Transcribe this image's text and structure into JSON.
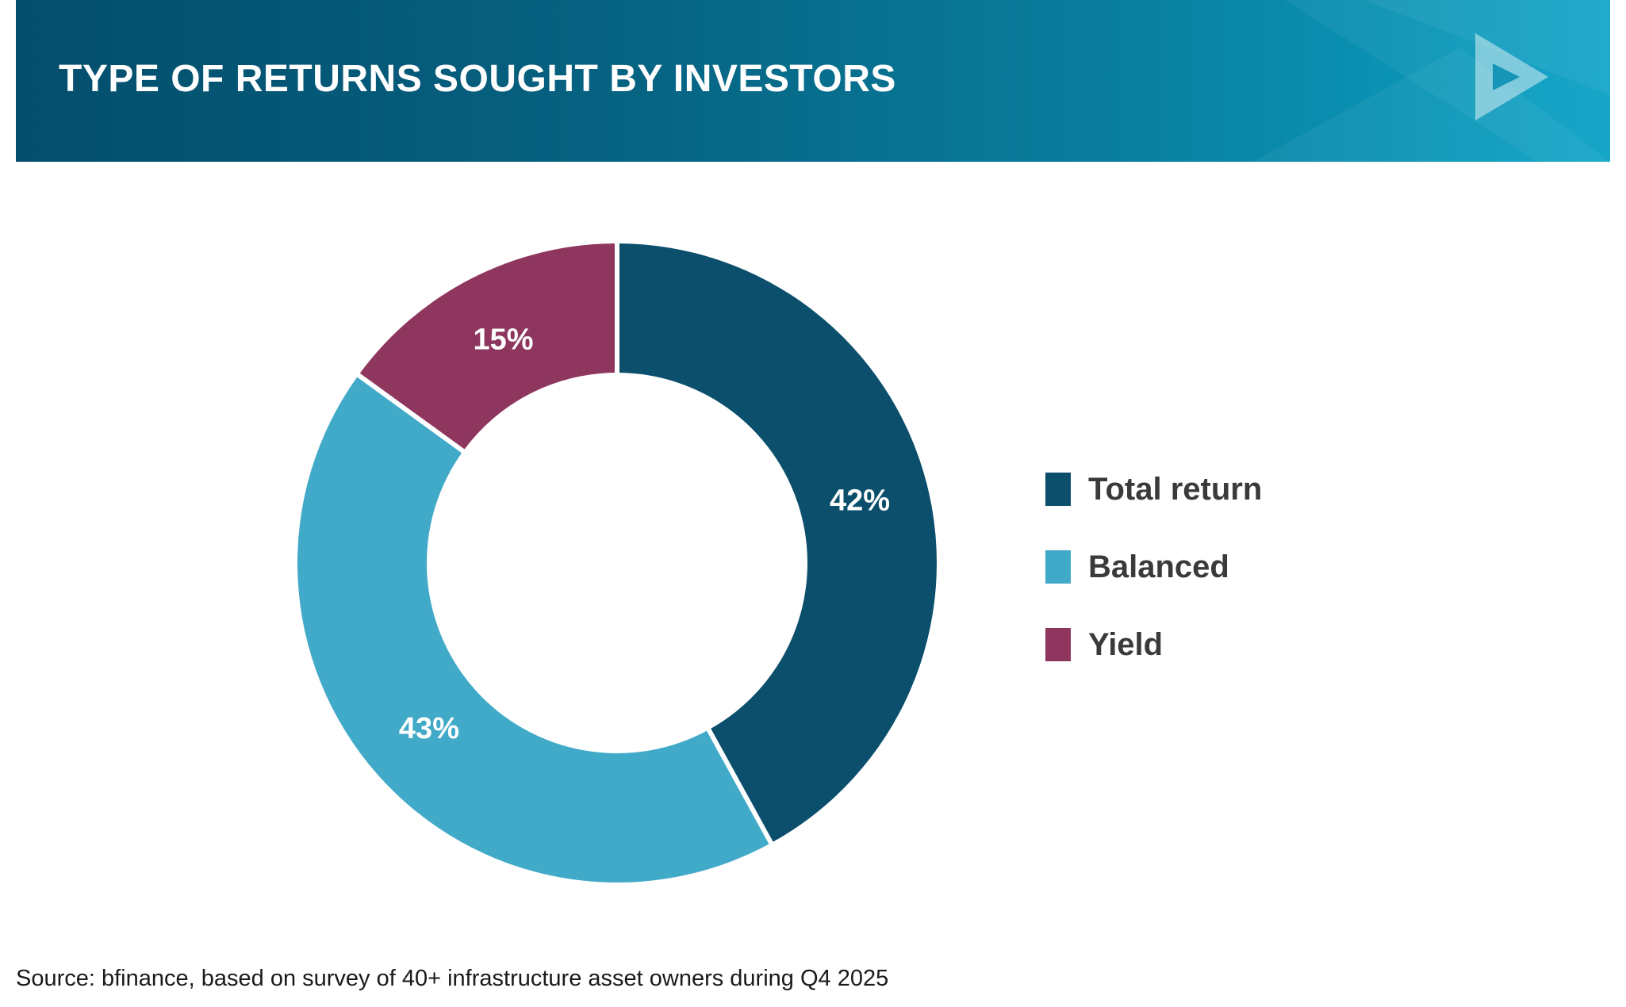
{
  "header": {
    "title": "TYPE OF RETURNS SOUGHT BY INVESTORS",
    "logo_icon": "play-triangle-icon"
  },
  "colors": {
    "banner_dark": "#044e6c",
    "banner_light": "#0aa2c6",
    "total_return": "#0b4f6c",
    "balanced": "#42aac9",
    "yield": "#8e365e",
    "text_dark": "#3a3a3a"
  },
  "chart_data": {
    "type": "pie",
    "variant": "donut",
    "start_angle_deg": 0,
    "direction": "clockwise",
    "slices": [
      {
        "label": "Total return",
        "value": 42,
        "value_label": "42%",
        "color": "#0b4f6c"
      },
      {
        "label": "Balanced",
        "value": 43,
        "value_label": "43%",
        "color": "#42aac9"
      },
      {
        "label": "Yield",
        "value": 15,
        "value_label": "15%",
        "color": "#8e365e"
      }
    ],
    "legend_position": "right"
  },
  "legend": {
    "items": [
      {
        "label": "Total return",
        "color": "#0b4f6c"
      },
      {
        "label": "Balanced",
        "color": "#42aac9"
      },
      {
        "label": "Yield",
        "color": "#8e365e"
      }
    ]
  },
  "footer": {
    "source": "Source: bfinance, based on survey of 40+ infrastructure asset owners during Q4 2025"
  }
}
